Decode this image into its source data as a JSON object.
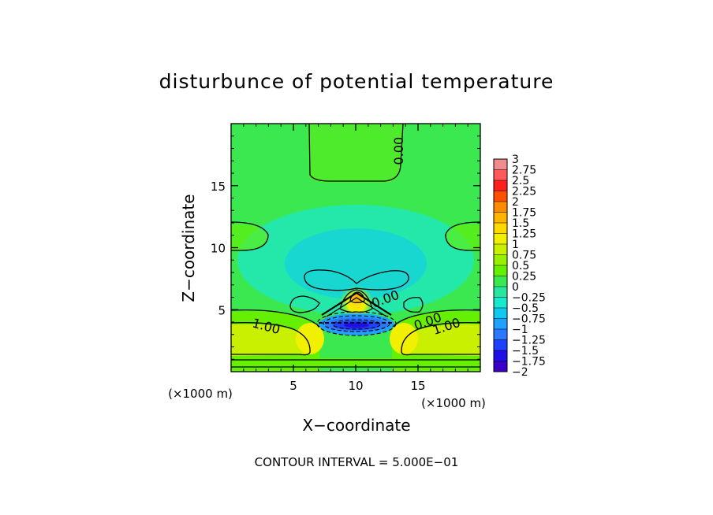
{
  "chart_data": {
    "type": "heatmap",
    "title": "disturbunce of potential temperature",
    "xlabel": "X−coordinate",
    "ylabel": "Z−coordinate",
    "x_unit": "(×1000 m)",
    "y_unit": "(×1000 m)",
    "xlim": [
      0,
      20
    ],
    "ylim": [
      0,
      20
    ],
    "x_ticks": [
      5,
      10,
      15
    ],
    "y_ticks": [
      5,
      10,
      15
    ],
    "footer": "CONTOUR INTERVAL = 5.000E−01",
    "contour_labels": [
      {
        "text": "0.00",
        "x": 13.5,
        "y": 17.8,
        "rotate": -90
      },
      {
        "text": "0.00",
        "x": 12.4,
        "y": 5.8,
        "rotate": -20
      },
      {
        "text": "0.00",
        "x": 15.8,
        "y": 4.0,
        "rotate": -20
      },
      {
        "text": "1.00",
        "x": 2.8,
        "y": 3.6,
        "rotate": 15
      },
      {
        "text": "1.00",
        "x": 17.3,
        "y": 3.6,
        "rotate": -18
      }
    ],
    "colorbar": {
      "levels": [
        "3",
        "2.75",
        "2.5",
        "2.25",
        "2",
        "1.75",
        "1.5",
        "1.25",
        "1",
        "0.75",
        "0.5",
        "0.25",
        "0",
        "−0.25",
        "−0.5",
        "−0.75",
        "−1",
        "−1.25",
        "−1.5",
        "−1.75",
        "−2"
      ],
      "colors": [
        "#f08c8c",
        "#ff5a5a",
        "#ff1e1e",
        "#ff5000",
        "#ff8c00",
        "#ffb400",
        "#ffd800",
        "#f0f000",
        "#c8f000",
        "#96f000",
        "#64f000",
        "#3ce850",
        "#28e6a0",
        "#18e8d0",
        "#10c8f0",
        "#20a0ff",
        "#2a78ff",
        "#2040ff",
        "#2010e8",
        "#3a00c8"
      ]
    }
  }
}
